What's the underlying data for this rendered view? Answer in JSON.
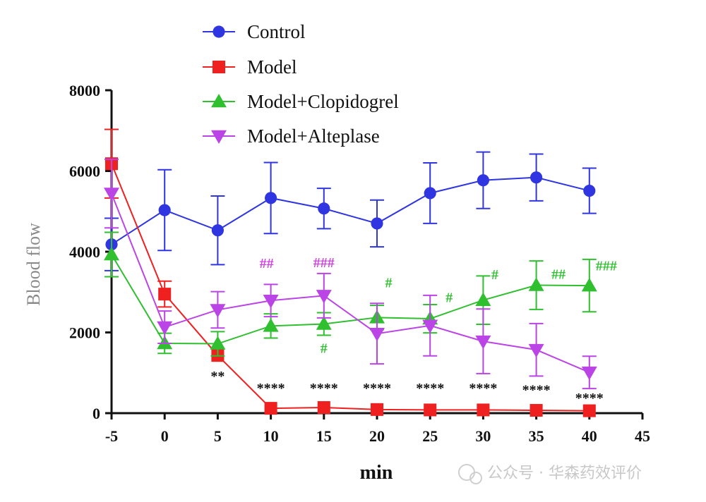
{
  "chart_data": {
    "type": "line",
    "title": "",
    "xlabel": "min",
    "ylabel": "Blood flow",
    "xlim": [
      -5,
      45
    ],
    "ylim": [
      0,
      8000
    ],
    "x_ticks": [
      "-5",
      "0",
      "5",
      "10",
      "15",
      "20",
      "25",
      "30",
      "35",
      "40",
      "45"
    ],
    "y_ticks": [
      "0",
      "2000",
      "4000",
      "6000",
      "8000"
    ],
    "legend_position": "top",
    "x": [
      -5,
      0,
      5,
      10,
      15,
      20,
      25,
      30,
      35,
      40
    ],
    "series": [
      {
        "name": "Control",
        "color": "#2f35e0",
        "marker": "circle",
        "values": [
          4180,
          5030,
          4530,
          5330,
          5070,
          4700,
          5450,
          5770,
          5840,
          5510
        ],
        "error": [
          650,
          1000,
          850,
          880,
          500,
          580,
          750,
          700,
          580,
          560
        ]
      },
      {
        "name": "Model",
        "color": "#ee2020",
        "marker": "square",
        "values": [
          6180,
          2950,
          1430,
          120,
          140,
          90,
          80,
          80,
          70,
          60
        ],
        "error": [
          850,
          320,
          0,
          0,
          0,
          0,
          0,
          0,
          0,
          0
        ]
      },
      {
        "name": "Model+Clopidogrel",
        "color": "#2fbf2f",
        "marker": "triangle-up",
        "values": [
          3930,
          1730,
          1720,
          2160,
          2210,
          2370,
          2340,
          2800,
          3170,
          3160
        ],
        "error": [
          550,
          250,
          300,
          300,
          280,
          300,
          350,
          600,
          600,
          650
        ]
      },
      {
        "name": "Model+Alteplase",
        "color": "#bb44e6",
        "marker": "triangle-down",
        "values": [
          5440,
          2130,
          2560,
          2790,
          2910,
          1970,
          2170,
          1780,
          1570,
          1010
        ],
        "error": [
          850,
          400,
          450,
          400,
          550,
          750,
          750,
          800,
          650,
          400
        ]
      }
    ],
    "annotations": [
      {
        "text": "**",
        "x": 5,
        "y": 800,
        "color": "#111111"
      },
      {
        "text": "****",
        "x": 10,
        "y": 510,
        "color": "#111111"
      },
      {
        "text": "****",
        "x": 15,
        "y": 510,
        "color": "#111111"
      },
      {
        "text": "****",
        "x": 20,
        "y": 510,
        "color": "#111111"
      },
      {
        "text": "****",
        "x": 25,
        "y": 510,
        "color": "#111111"
      },
      {
        "text": "****",
        "x": 30,
        "y": 510,
        "color": "#111111"
      },
      {
        "text": "****",
        "x": 35,
        "y": 460,
        "color": "#111111"
      },
      {
        "text": "****",
        "x": 40,
        "y": 260,
        "color": "#111111"
      },
      {
        "text": "##",
        "x": 9.6,
        "y": 3600,
        "color": "#d040e0"
      },
      {
        "text": "###",
        "x": 15,
        "y": 3620,
        "color": "#d040e0"
      },
      {
        "text": "#",
        "x": 15,
        "y": 1490,
        "color": "#2fbf2f"
      },
      {
        "text": "#",
        "x": 21.1,
        "y": 3120,
        "color": "#2fbf2f"
      },
      {
        "text": "#",
        "x": 26.8,
        "y": 2750,
        "color": "#2fbf2f"
      },
      {
        "text": "#",
        "x": 31.1,
        "y": 3320,
        "color": "#2fbf2f"
      },
      {
        "text": "##",
        "x": 37.1,
        "y": 3330,
        "color": "#2fbf2f"
      },
      {
        "text": "###",
        "x": 41.6,
        "y": 3540,
        "color": "#2fbf2f"
      }
    ]
  },
  "watermark": "公众号 · 华森药效评价"
}
